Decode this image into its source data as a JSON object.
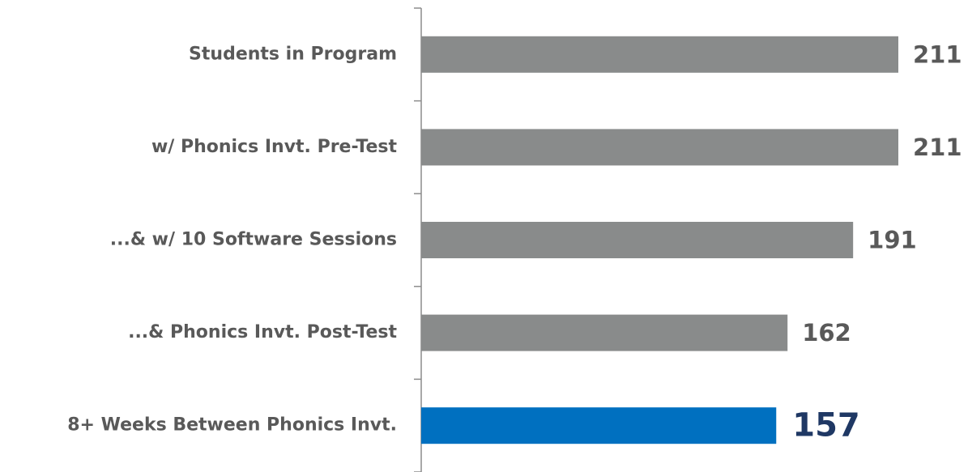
{
  "chart_data": {
    "type": "barh",
    "categories": [
      "Students in Program",
      "w/ Phonics Invt. Pre-Test",
      "...& w/ 10 Software Sessions",
      "...& Phonics Invt. Post-Test",
      "8+ Weeks Between Phonics Invt."
    ],
    "values": [
      211,
      211,
      191,
      162,
      157
    ],
    "colors": [
      "#898b8b",
      "#898b8b",
      "#898b8b",
      "#898b8b",
      "#0070c0"
    ],
    "value_label_colors": [
      "#595959",
      "#595959",
      "#595959",
      "#595959",
      "#1f3864"
    ]
  }
}
